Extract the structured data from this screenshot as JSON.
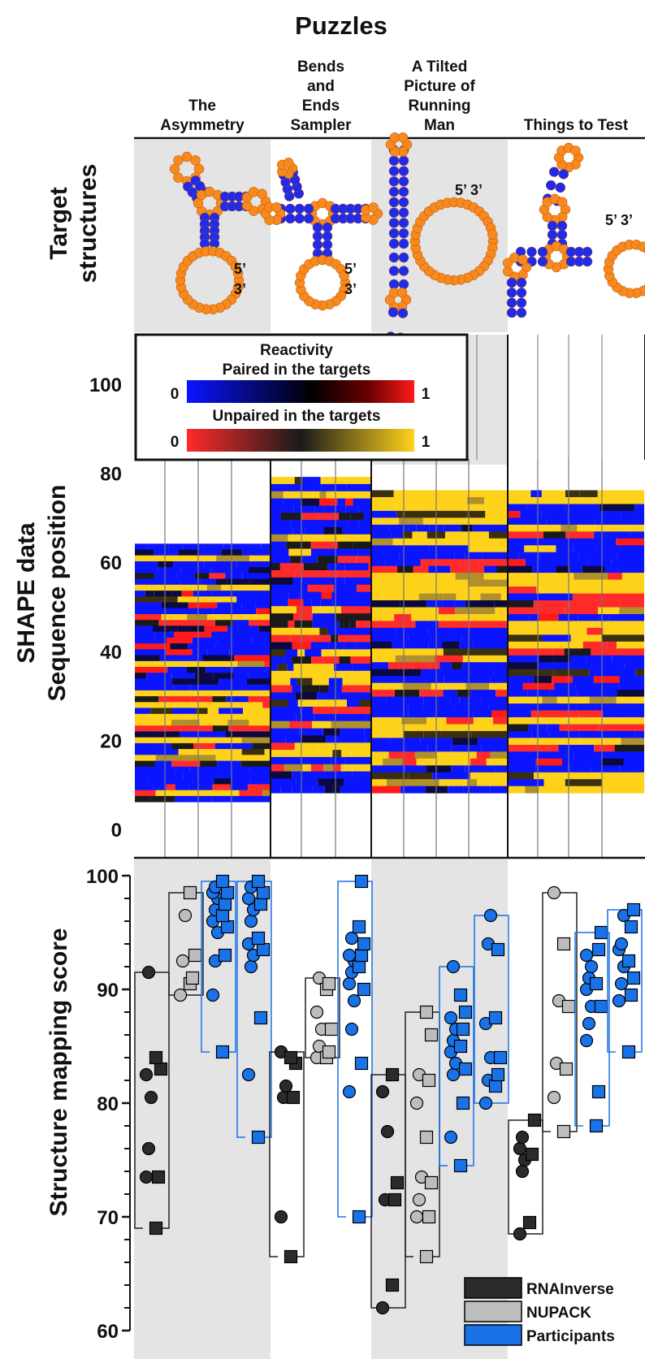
{
  "header": {
    "title": "Puzzles",
    "puzzles": [
      {
        "lines": [
          "The",
          "Asymmetry"
        ]
      },
      {
        "lines": [
          "Bends",
          "and",
          "Ends",
          "Sampler"
        ]
      },
      {
        "lines": [
          "A Tilted",
          "Picture of",
          "Running",
          "Man"
        ]
      },
      {
        "lines": [
          "Things to Test"
        ]
      }
    ]
  },
  "row_labels": {
    "target": [
      "Target",
      "structures"
    ],
    "shape": [
      "SHAPE data",
      "Sequence position"
    ],
    "score": "Structure mapping score"
  },
  "structure_labels": [
    "5’",
    "3’",
    "5’ 3’"
  ],
  "colors": {
    "paired_low": "#0a14ff",
    "paired_mid": "#000000",
    "paired_high": "#ff1a1a",
    "unpaired_low": "#ff2a2a",
    "unpaired_mid": "#1a1a1a",
    "unpaired_high": "#ffd21a",
    "rnainverse": "#2b2b2b",
    "nupack": "#bdbdbd",
    "participants": "#1a72e8",
    "panel_gray": "#e4e4e4",
    "base_unpaired": "#f7891e",
    "base_paired": "#1f2aea"
  },
  "heat_legend": {
    "title": "Reactivity",
    "paired_label": "Paired in the targets",
    "unpaired_label": "Unpaired in the targets",
    "min": "0",
    "max": "1"
  },
  "chart_data": [
    {
      "type": "heatmap",
      "ylabel": "SHAPE data Sequence position",
      "yticks": [
        "0",
        "20",
        "40",
        "60",
        "80",
        "100"
      ],
      "ylim": [
        0,
        110
      ],
      "puzzles": [
        {
          "name": "The Asymmetry",
          "seq_range": [
            6,
            64
          ]
        },
        {
          "name": "Bends and Ends Sampler",
          "seq_range": [
            8,
            79
          ]
        },
        {
          "name": "A Tilted Picture of Running Man",
          "seq_range": [
            8,
            76
          ]
        },
        {
          "name": "Things to Test",
          "seq_range": [
            8,
            76
          ]
        }
      ]
    },
    {
      "type": "scatter",
      "ylabel": "Structure mapping score",
      "ylim": [
        60,
        100
      ],
      "yticks": [
        "60",
        "70",
        "80",
        "90",
        "100"
      ],
      "legend": [
        "RNAInverse",
        "NUPACK",
        "Participants"
      ],
      "legend_position": "bottom-right",
      "groups": [
        {
          "puzzle": "The Asymmetry",
          "series": [
            {
              "name": "RNAInverse",
              "circles": [
                73.5,
                76,
                80.5,
                82.5,
                91.5
              ],
              "squares": [
                69,
                73.5,
                83,
                84
              ],
              "range": [
                69,
                91.5
              ]
            },
            {
              "name": "NUPACK",
              "circles": [
                89.5,
                92.5,
                96.5
              ],
              "squares": [
                90.5,
                91,
                93,
                98.5
              ],
              "range": [
                89.5,
                98.5
              ]
            },
            {
              "name": "Participants",
              "circles": [
                89.5,
                92.5,
                95,
                96,
                97,
                98,
                98.5,
                99
              ],
              "squares": [
                84.5,
                93,
                95.5,
                96.5,
                97.5,
                98.5,
                99.5
              ],
              "range": [
                84.5,
                99.5
              ]
            },
            {
              "name": "Participants",
              "circles": [
                82.5,
                92,
                93,
                94,
                96,
                97,
                98,
                99
              ],
              "squares": [
                77,
                87.5,
                93.5,
                94.5,
                97.5,
                98.5,
                99.5
              ],
              "range": [
                77,
                99.5
              ]
            }
          ]
        },
        {
          "puzzle": "Bends and Ends Sampler",
          "series": [
            {
              "name": "RNAInverse",
              "circles": [
                70,
                80.5,
                81.5,
                84.5
              ],
              "squares": [
                66.5,
                80.5,
                83.5,
                84
              ],
              "range": [
                66.5,
                84.5
              ]
            },
            {
              "name": "NUPACK",
              "circles": [
                84,
                85,
                86.5,
                88,
                91
              ],
              "squares": [
                84,
                84.5,
                86.5,
                90,
                90.5
              ],
              "range": [
                84,
                91
              ]
            },
            {
              "name": "Participants",
              "circles": [
                81,
                86.5,
                89,
                90.5,
                91.5,
                92.5,
                93,
                94.5
              ],
              "squares": [
                70,
                83.5,
                90,
                92,
                93,
                94,
                95.5,
                99.5
              ],
              "range": [
                70,
                99.5
              ]
            }
          ]
        },
        {
          "puzzle": "A Tilted Picture of Running Man",
          "series": [
            {
              "name": "RNAInverse",
              "circles": [
                62,
                71.5,
                77.5,
                81
              ],
              "squares": [
                64,
                71.5,
                73,
                82.5
              ],
              "range": [
                62,
                82.5
              ]
            },
            {
              "name": "NUPACK",
              "circles": [
                70,
                71.5,
                73.5,
                80,
                82.5
              ],
              "squares": [
                66.5,
                70,
                73,
                77,
                82,
                86,
                88
              ],
              "range": [
                66.5,
                88
              ]
            },
            {
              "name": "Participants",
              "circles": [
                77,
                82.5,
                83.5,
                84.5,
                85.5,
                86.5,
                87.5,
                92
              ],
              "squares": [
                74.5,
                80,
                83,
                85,
                86.5,
                88,
                89.5
              ],
              "range": [
                74.5,
                92
              ]
            },
            {
              "name": "Participants",
              "circles": [
                80,
                82,
                84,
                87,
                94,
                96.5
              ],
              "squares": [
                81.5,
                82.5,
                84,
                87.5,
                93.5
              ],
              "range": [
                80,
                96.5
              ]
            }
          ]
        },
        {
          "puzzle": "Things to Test",
          "series": [
            {
              "name": "RNAInverse",
              "circles": [
                68.5,
                74,
                75,
                76,
                77
              ],
              "squares": [
                69.5,
                75.5,
                78.5
              ],
              "range": [
                68.5,
                78.5
              ]
            },
            {
              "name": "NUPACK",
              "circles": [
                80.5,
                83.5,
                89,
                98.5
              ],
              "squares": [
                77.5,
                83,
                88.5,
                94
              ],
              "range": [
                77.5,
                98.5
              ]
            },
            {
              "name": "Participants",
              "circles": [
                85.5,
                87,
                88.5,
                90,
                91,
                92,
                93
              ],
              "squares": [
                78,
                81,
                88.5,
                90.5,
                93.5,
                95
              ],
              "range": [
                78,
                95
              ]
            },
            {
              "name": "Participants",
              "circles": [
                89,
                90.5,
                92,
                93.5,
                94,
                96.5
              ],
              "squares": [
                84.5,
                89.5,
                91,
                92.5,
                95.5,
                97
              ],
              "range": [
                84.5,
                97
              ]
            }
          ]
        }
      ]
    }
  ]
}
